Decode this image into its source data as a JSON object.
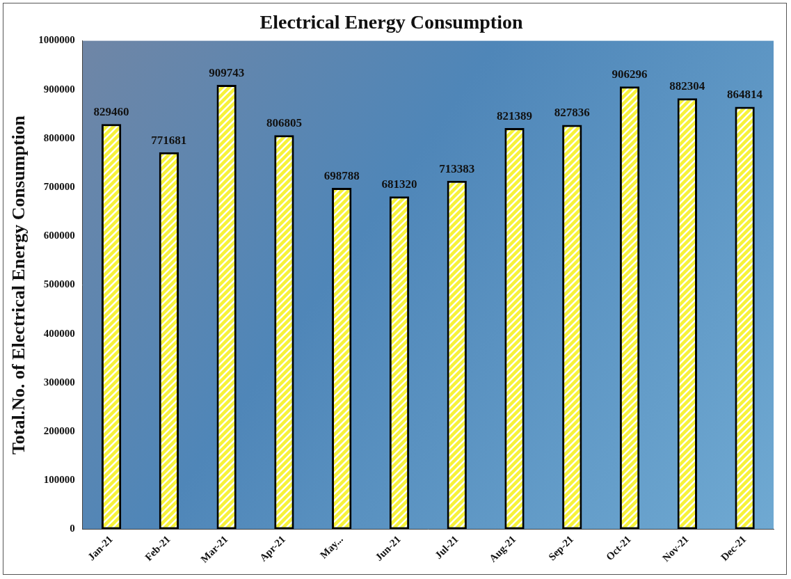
{
  "chart_data": {
    "type": "bar",
    "title": "Electrical Energy Consumption",
    "y_label": "Total.No. of Electrical Energy Consumption",
    "categories": [
      "Jan-21",
      "Feb-21",
      "Mar-21",
      "Apr-21",
      "May...",
      "Jun-21",
      "Jul-21",
      "Aug-21",
      "Sep-21",
      "Oct-21",
      "Nov-21",
      "Dec-21"
    ],
    "values": [
      829460,
      771681,
      909743,
      806805,
      698788,
      681320,
      713383,
      821389,
      827836,
      906296,
      882304,
      864814
    ],
    "color": "#f7f23a",
    "ylim": [
      0,
      1000000
    ],
    "yticks": [
      0,
      100000,
      200000,
      300000,
      400000,
      500000,
      600000,
      700000,
      800000,
      900000,
      1000000
    ],
    "grid": false,
    "data_labels": true
  }
}
